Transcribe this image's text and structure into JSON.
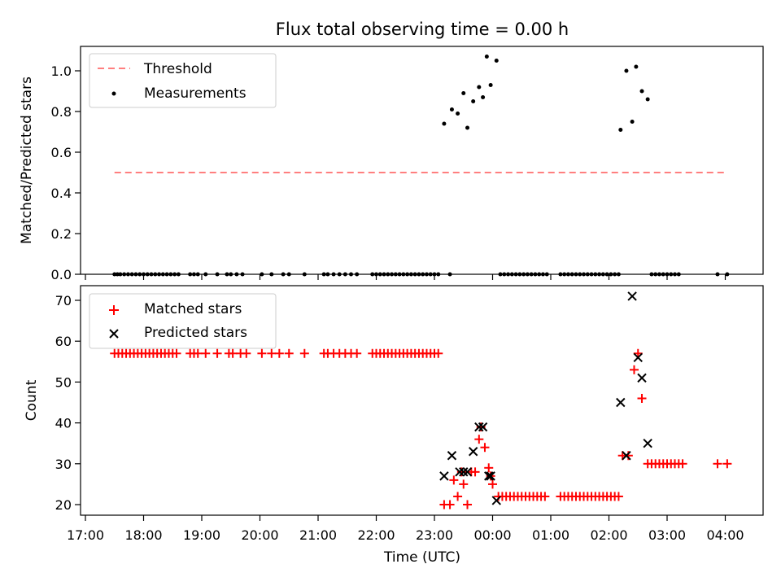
{
  "chart_data": [
    {
      "type": "scatter",
      "title": "Flux total observing time = 0.00 h",
      "xlabel": "",
      "ylabel": "Matched/Predicted stars",
      "ylim": [
        0,
        1.13
      ],
      "yticks": [
        "0.0",
        "0.2",
        "0.4",
        "0.6",
        "0.8",
        "1.0"
      ],
      "legend_position": "top-left",
      "threshold": {
        "name": "Threshold",
        "value": 0.5,
        "x_start": "17:30",
        "x_end": "04:00",
        "color": "#ff7f7f"
      },
      "series": [
        {
          "name": "Measurements",
          "color": "#000000",
          "points": [
            [
              "17:30",
              0
            ],
            [
              "17:33",
              0
            ],
            [
              "17:36",
              0
            ],
            [
              "17:40",
              0
            ],
            [
              "17:44",
              0
            ],
            [
              "17:48",
              0
            ],
            [
              "17:52",
              0
            ],
            [
              "17:56",
              0
            ],
            [
              "18:00",
              0
            ],
            [
              "18:04",
              0
            ],
            [
              "18:08",
              0
            ],
            [
              "18:12",
              0
            ],
            [
              "18:16",
              0
            ],
            [
              "18:20",
              0
            ],
            [
              "18:24",
              0
            ],
            [
              "18:28",
              0
            ],
            [
              "18:32",
              0
            ],
            [
              "18:36",
              0
            ],
            [
              "18:48",
              0
            ],
            [
              "18:52",
              0
            ],
            [
              "18:56",
              0
            ],
            [
              "19:04",
              0
            ],
            [
              "19:16",
              0
            ],
            [
              "19:26",
              0
            ],
            [
              "19:30",
              0
            ],
            [
              "19:36",
              0
            ],
            [
              "19:42",
              0
            ],
            [
              "20:02",
              0
            ],
            [
              "20:12",
              0
            ],
            [
              "20:24",
              0
            ],
            [
              "20:30",
              0
            ],
            [
              "20:46",
              0
            ],
            [
              "21:06",
              0
            ],
            [
              "21:10",
              0
            ],
            [
              "21:16",
              0
            ],
            [
              "21:22",
              0
            ],
            [
              "21:28",
              0
            ],
            [
              "21:34",
              0
            ],
            [
              "21:40",
              0
            ],
            [
              "21:56",
              0
            ],
            [
              "22:00",
              0
            ],
            [
              "22:04",
              0
            ],
            [
              "22:08",
              0
            ],
            [
              "22:12",
              0
            ],
            [
              "22:16",
              0
            ],
            [
              "22:20",
              0
            ],
            [
              "22:24",
              0
            ],
            [
              "22:28",
              0
            ],
            [
              "22:32",
              0
            ],
            [
              "22:36",
              0
            ],
            [
              "22:40",
              0
            ],
            [
              "22:44",
              0
            ],
            [
              "22:48",
              0
            ],
            [
              "22:52",
              0
            ],
            [
              "22:56",
              0
            ],
            [
              "23:00",
              0
            ],
            [
              "23:04",
              0
            ],
            [
              "23:16",
              0
            ],
            [
              "23:10",
              0.74
            ],
            [
              "23:18",
              0.81
            ],
            [
              "23:24",
              0.79
            ],
            [
              "23:30",
              0.89
            ],
            [
              "23:34",
              0.72
            ],
            [
              "23:40",
              0.85
            ],
            [
              "23:46",
              0.92
            ],
            [
              "23:50",
              0.87
            ],
            [
              "23:54",
              1.07
            ],
            [
              "23:58",
              0.93
            ],
            [
              "00:04",
              1.05
            ],
            [
              "00:08",
              0
            ],
            [
              "00:12",
              0
            ],
            [
              "00:16",
              0
            ],
            [
              "00:20",
              0
            ],
            [
              "00:24",
              0
            ],
            [
              "00:28",
              0
            ],
            [
              "00:32",
              0
            ],
            [
              "00:36",
              0
            ],
            [
              "00:40",
              0
            ],
            [
              "00:44",
              0
            ],
            [
              "00:48",
              0
            ],
            [
              "00:52",
              0
            ],
            [
              "00:56",
              0
            ],
            [
              "01:10",
              0
            ],
            [
              "01:14",
              0
            ],
            [
              "01:18",
              0
            ],
            [
              "01:22",
              0
            ],
            [
              "01:26",
              0
            ],
            [
              "01:30",
              0
            ],
            [
              "01:34",
              0
            ],
            [
              "01:38",
              0
            ],
            [
              "01:42",
              0
            ],
            [
              "01:46",
              0
            ],
            [
              "01:50",
              0
            ],
            [
              "01:54",
              0
            ],
            [
              "01:58",
              0
            ],
            [
              "02:02",
              0
            ],
            [
              "02:06",
              0
            ],
            [
              "02:10",
              0
            ],
            [
              "02:12",
              0.71
            ],
            [
              "02:18",
              1.0
            ],
            [
              "02:24",
              0.75
            ],
            [
              "02:28",
              1.02
            ],
            [
              "02:34",
              0.9
            ],
            [
              "02:40",
              0.86
            ],
            [
              "02:44",
              0
            ],
            [
              "02:48",
              0
            ],
            [
              "02:52",
              0
            ],
            [
              "02:56",
              0
            ],
            [
              "03:00",
              0
            ],
            [
              "03:04",
              0
            ],
            [
              "03:08",
              0
            ],
            [
              "03:12",
              0
            ],
            [
              "03:52",
              0
            ],
            [
              "04:02",
              0
            ]
          ]
        }
      ]
    },
    {
      "type": "scatter",
      "title": "",
      "xlabel": "Time (UTC)",
      "ylabel": "Count",
      "ylim": [
        17.3,
        73.5
      ],
      "yticks": [
        "20",
        "30",
        "40",
        "50",
        "60",
        "70"
      ],
      "xticks": [
        "17:00",
        "18:00",
        "19:00",
        "20:00",
        "21:00",
        "22:00",
        "23:00",
        "00:00",
        "01:00",
        "02:00",
        "03:00",
        "04:00"
      ],
      "legend_position": "top-left",
      "series": [
        {
          "name": "Matched stars",
          "color": "#ff0000",
          "marker": "plus",
          "points": [
            [
              "17:30",
              57
            ],
            [
              "17:34",
              57
            ],
            [
              "17:38",
              57
            ],
            [
              "17:42",
              57
            ],
            [
              "17:46",
              57
            ],
            [
              "17:50",
              57
            ],
            [
              "17:54",
              57
            ],
            [
              "17:58",
              57
            ],
            [
              "18:02",
              57
            ],
            [
              "18:06",
              57
            ],
            [
              "18:10",
              57
            ],
            [
              "18:14",
              57
            ],
            [
              "18:18",
              57
            ],
            [
              "18:22",
              57
            ],
            [
              "18:26",
              57
            ],
            [
              "18:30",
              57
            ],
            [
              "18:34",
              57
            ],
            [
              "18:48",
              57
            ],
            [
              "18:52",
              57
            ],
            [
              "18:56",
              57
            ],
            [
              "19:04",
              57
            ],
            [
              "19:16",
              57
            ],
            [
              "19:28",
              57
            ],
            [
              "19:32",
              57
            ],
            [
              "19:40",
              57
            ],
            [
              "19:46",
              57
            ],
            [
              "20:02",
              57
            ],
            [
              "20:12",
              57
            ],
            [
              "20:20",
              57
            ],
            [
              "20:30",
              57
            ],
            [
              "20:46",
              57
            ],
            [
              "21:06",
              57
            ],
            [
              "21:10",
              57
            ],
            [
              "21:16",
              57
            ],
            [
              "21:22",
              57
            ],
            [
              "21:28",
              57
            ],
            [
              "21:34",
              57
            ],
            [
              "21:40",
              57
            ],
            [
              "21:56",
              57
            ],
            [
              "22:00",
              57
            ],
            [
              "22:04",
              57
            ],
            [
              "22:08",
              57
            ],
            [
              "22:12",
              57
            ],
            [
              "22:16",
              57
            ],
            [
              "22:20",
              57
            ],
            [
              "22:24",
              57
            ],
            [
              "22:28",
              57
            ],
            [
              "22:32",
              57
            ],
            [
              "22:36",
              57
            ],
            [
              "22:40",
              57
            ],
            [
              "22:44",
              57
            ],
            [
              "22:48",
              57
            ],
            [
              "22:52",
              57
            ],
            [
              "22:56",
              57
            ],
            [
              "23:00",
              57
            ],
            [
              "23:04",
              57
            ],
            [
              "23:10",
              20
            ],
            [
              "23:16",
              20
            ],
            [
              "23:20",
              26
            ],
            [
              "23:24",
              22
            ],
            [
              "23:28",
              28
            ],
            [
              "23:30",
              25
            ],
            [
              "23:34",
              20
            ],
            [
              "23:38",
              28
            ],
            [
              "23:42",
              28
            ],
            [
              "23:46",
              36
            ],
            [
              "23:48",
              39
            ],
            [
              "23:52",
              34
            ],
            [
              "23:56",
              29
            ],
            [
              "23:58",
              27
            ],
            [
              "00:00",
              25
            ],
            [
              "00:06",
              22
            ],
            [
              "00:10",
              22
            ],
            [
              "00:14",
              22
            ],
            [
              "00:18",
              22
            ],
            [
              "00:22",
              22
            ],
            [
              "00:26",
              22
            ],
            [
              "00:30",
              22
            ],
            [
              "00:34",
              22
            ],
            [
              "00:38",
              22
            ],
            [
              "00:42",
              22
            ],
            [
              "00:46",
              22
            ],
            [
              "00:50",
              22
            ],
            [
              "00:54",
              22
            ],
            [
              "01:10",
              22
            ],
            [
              "01:14",
              22
            ],
            [
              "01:18",
              22
            ],
            [
              "01:22",
              22
            ],
            [
              "01:26",
              22
            ],
            [
              "01:30",
              22
            ],
            [
              "01:34",
              22
            ],
            [
              "01:38",
              22
            ],
            [
              "01:42",
              22
            ],
            [
              "01:46",
              22
            ],
            [
              "01:50",
              22
            ],
            [
              "01:54",
              22
            ],
            [
              "01:58",
              22
            ],
            [
              "02:02",
              22
            ],
            [
              "02:06",
              22
            ],
            [
              "02:10",
              22
            ],
            [
              "02:14",
              32
            ],
            [
              "02:20",
              32
            ],
            [
              "02:26",
              53
            ],
            [
              "02:30",
              57
            ],
            [
              "02:34",
              46
            ],
            [
              "02:40",
              30
            ],
            [
              "02:44",
              30
            ],
            [
              "02:48",
              30
            ],
            [
              "02:52",
              30
            ],
            [
              "02:56",
              30
            ],
            [
              "03:00",
              30
            ],
            [
              "03:04",
              30
            ],
            [
              "03:08",
              30
            ],
            [
              "03:12",
              30
            ],
            [
              "03:16",
              30
            ],
            [
              "03:52",
              30
            ],
            [
              "04:02",
              30
            ]
          ]
        },
        {
          "name": "Predicted stars",
          "color": "#000000",
          "marker": "x",
          "points": [
            [
              "23:10",
              27
            ],
            [
              "23:18",
              32
            ],
            [
              "23:26",
              28
            ],
            [
              "23:30",
              28
            ],
            [
              "23:34",
              28
            ],
            [
              "23:40",
              33
            ],
            [
              "23:46",
              39
            ],
            [
              "23:50",
              39
            ],
            [
              "23:56",
              27
            ],
            [
              "23:58",
              27
            ],
            [
              "00:04",
              21
            ],
            [
              "02:12",
              45
            ],
            [
              "02:18",
              32
            ],
            [
              "02:24",
              71
            ],
            [
              "02:30",
              56
            ],
            [
              "02:34",
              51
            ],
            [
              "02:40",
              35
            ]
          ]
        }
      ]
    }
  ]
}
